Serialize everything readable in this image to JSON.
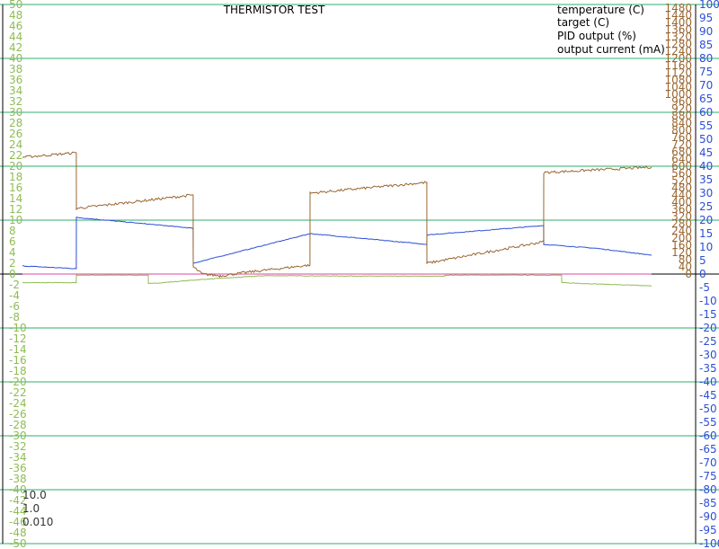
{
  "chart_data": {
    "type": "line",
    "title": "THERMISTOR TEST",
    "grid": true,
    "legend_position": "top-right",
    "colors": {
      "temperature": "#8fbc54",
      "target": "#d9489c",
      "pid": "#2c4fd6",
      "current": "#9a6630",
      "grid": "#2fae6c",
      "axis": "#000000"
    },
    "left_axis": {
      "label": "temperature (C)",
      "range": [
        -50,
        50
      ],
      "ticks": [
        "50",
        "48",
        "46",
        "44",
        "42",
        "40",
        "38",
        "36",
        "34",
        "32",
        "30",
        "28",
        "26",
        "24",
        "22",
        "20",
        "18",
        "16",
        "14",
        "12",
        "10",
        "8",
        "6",
        "4",
        "2",
        "0",
        "-2",
        "-4",
        "-6",
        "-8",
        "-10",
        "-12",
        "-14",
        "-16",
        "-18",
        "-20",
        "-22",
        "-24",
        "-26",
        "-28",
        "-30",
        "-32",
        "-34",
        "-36",
        "-38",
        "-40",
        "-42",
        "-44",
        "-46",
        "-48",
        "-50"
      ]
    },
    "current_axis": {
      "label": "output current (mA)",
      "range": [
        0,
        1480
      ],
      "ticks": [
        "1480",
        "1440",
        "1400",
        "1360",
        "1320",
        "1280",
        "1240",
        "1200",
        "1160",
        "1120",
        "1080",
        "1040",
        "1000",
        "960",
        "920",
        "880",
        "840",
        "800",
        "760",
        "720",
        "680",
        "640",
        "600",
        "560",
        "520",
        "480",
        "440",
        "400",
        "360",
        "320",
        "280",
        "240",
        "200",
        "160",
        "120",
        "80",
        "40",
        "0"
      ]
    },
    "pid_axis": {
      "label": "PID output (%)",
      "range": [
        -100,
        100
      ],
      "ticks": [
        "100",
        "95",
        "90",
        "85",
        "80",
        "75",
        "70",
        "65",
        "60",
        "55",
        "50",
        "45",
        "40",
        "35",
        "30",
        "25",
        "20",
        "15",
        "10",
        "5",
        "0",
        "-5",
        "-10",
        "-15",
        "-20",
        "-25",
        "-30",
        "-35",
        "-40",
        "-45",
        "-50",
        "-55",
        "-60",
        "-65",
        "-70",
        "-75",
        "-80",
        "-85",
        "-90",
        "-95",
        "-100"
      ]
    },
    "pid_gains": [
      "10.0",
      "1.0",
      "0.010"
    ],
    "series": [
      {
        "name": "temperature (C)",
        "axis": "temperature",
        "x": [
          0,
          50,
          59.9,
          60,
          130,
          140,
          140.1,
          200,
          269.9,
          270,
          400,
          469.9,
          470,
          540,
          599.9,
          600,
          700
        ],
        "values": [
          -1.6,
          -1.6,
          -1.6,
          -0.2,
          -0.2,
          -0.2,
          -1.8,
          -1.0,
          -0.3,
          -0.3,
          -0.4,
          -0.4,
          -0.2,
          -0.2,
          -0.2,
          -1.6,
          -2.2
        ]
      },
      {
        "name": "target (C)",
        "axis": "temperature",
        "x": [
          0,
          700
        ],
        "values": [
          0,
          0
        ]
      },
      {
        "name": "PID output (%)",
        "axis": "pid",
        "x": [
          0,
          59.9,
          60,
          189.9,
          190,
          320,
          449.9,
          450,
          579.9,
          580,
          640,
          700
        ],
        "values": [
          3,
          2,
          21,
          17,
          4,
          15,
          11,
          14.5,
          18,
          11,
          9.5,
          7
        ]
      },
      {
        "name": "output current (mA)",
        "axis": "current",
        "x": [
          0,
          59.9,
          60,
          189.9,
          190,
          200,
          220,
          250,
          319.9,
          320,
          449.9,
          450,
          579.9,
          580,
          700
        ],
        "values": [
          650,
          675,
          365,
          440,
          40,
          0,
          -10,
          10,
          50,
          450,
          510,
          60,
          180,
          565,
          595
        ]
      }
    ]
  }
}
